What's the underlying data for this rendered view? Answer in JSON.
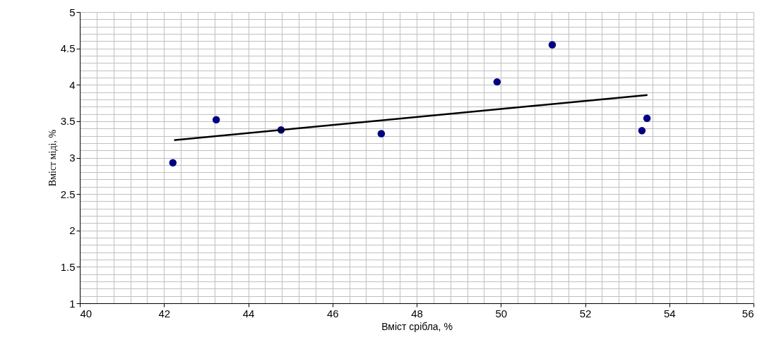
{
  "chart_data": {
    "type": "scatter",
    "xlabel": "Вміст срібла, %",
    "ylabel": "Вміст міді, %",
    "xlim": [
      40,
      56
    ],
    "ylim": [
      1,
      5
    ],
    "xticks": [
      40,
      42,
      44,
      46,
      48,
      50,
      52,
      54,
      56
    ],
    "yticks": [
      1,
      1.5,
      2,
      2.5,
      3,
      3.5,
      4,
      4.5,
      5
    ],
    "grid": true,
    "series": [
      {
        "marker": "circle",
        "color": "#000080",
        "x": [
          42.21,
          43.24,
          44.78,
          47.16,
          49.91,
          51.22,
          53.47,
          53.35
        ],
        "values": [
          2.93,
          3.52,
          3.38,
          3.33,
          4.04,
          4.55,
          3.54,
          3.37
        ]
      },
      {
        "type": "line",
        "color": "#000000",
        "line_style": "solid",
        "x": [
          42.24,
          53.48
        ],
        "values": [
          3.24,
          3.86
        ]
      }
    ]
  }
}
